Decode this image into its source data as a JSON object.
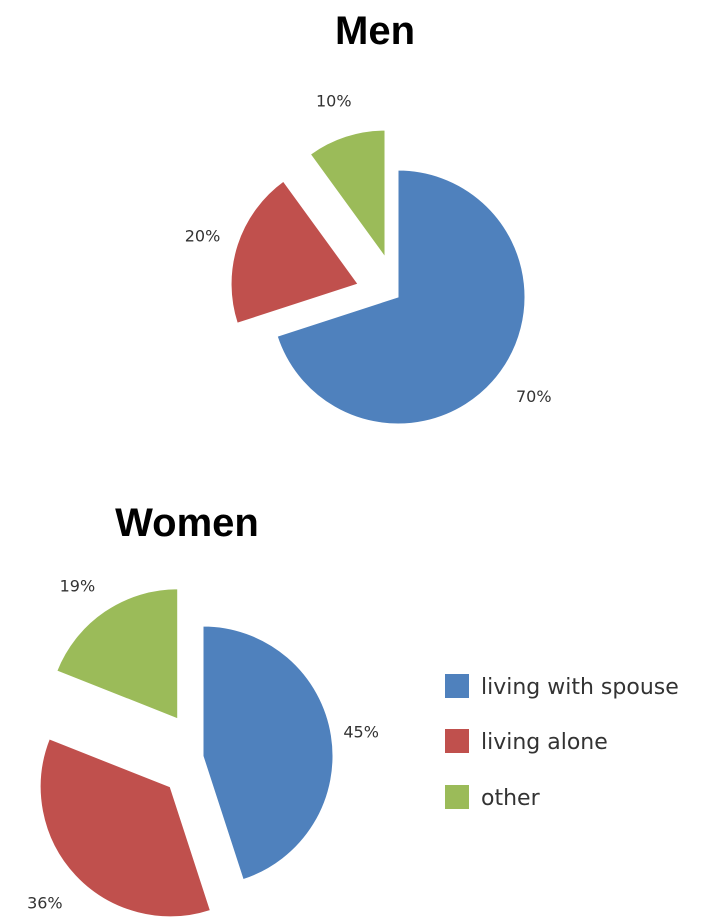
{
  "chart_data": [
    {
      "type": "pie",
      "title": "Men",
      "categories": [
        "living with spouse",
        "living alone",
        "other"
      ],
      "values": [
        70,
        20,
        10
      ],
      "labels": [
        "70%",
        "20%",
        "10%"
      ],
      "exploded": [
        false,
        true,
        true
      ]
    },
    {
      "type": "pie",
      "title": "Women",
      "categories": [
        "living with spouse",
        "living alone",
        "other"
      ],
      "values": [
        45,
        36,
        19
      ],
      "labels": [
        "45%",
        "36%",
        "19%"
      ],
      "exploded": [
        false,
        true,
        true
      ]
    }
  ],
  "legend": {
    "placement": "right",
    "items": [
      {
        "label": "living with spouse",
        "color": "#4f81bd"
      },
      {
        "label": "living alone",
        "color": "#c0504d"
      },
      {
        "label": "other",
        "color": "#9bbb59"
      }
    ]
  }
}
